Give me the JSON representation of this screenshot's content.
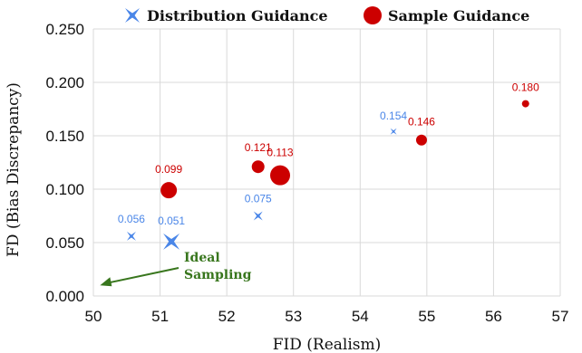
{
  "chart_data": {
    "type": "scatter",
    "xlabel": "FID (Realism)",
    "ylabel": "FD (Bias Discrepancy)",
    "xlim": [
      50,
      57
    ],
    "ylim": [
      0,
      0.25
    ],
    "xticks": [
      "50",
      "51",
      "52",
      "53",
      "54",
      "55",
      "56",
      "57"
    ],
    "yticks": [
      "0.000",
      "0.050",
      "0.100",
      "0.150",
      "0.200",
      "0.250"
    ],
    "grid": true,
    "legend_position": "top",
    "series": [
      {
        "name": "Distribution Guidance",
        "marker": "star",
        "color": "#4a86e8",
        "points": [
          {
            "x": 50.57,
            "y": 0.056,
            "label": "0.056",
            "size": 1
          },
          {
            "x": 51.17,
            "y": 0.051,
            "label": "0.051",
            "size": 1.8
          },
          {
            "x": 52.47,
            "y": 0.075,
            "label": "0.075",
            "size": 1
          },
          {
            "x": 54.5,
            "y": 0.154,
            "label": "0.154",
            "size": 0.7
          }
        ]
      },
      {
        "name": "Sample Guidance",
        "marker": "circle",
        "color": "#cc0000",
        "points": [
          {
            "x": 51.13,
            "y": 0.099,
            "label": "0.099",
            "size": 9
          },
          {
            "x": 52.47,
            "y": 0.121,
            "label": "0.121",
            "size": 7
          },
          {
            "x": 52.8,
            "y": 0.113,
            "label": "0.113",
            "size": 11
          },
          {
            "x": 54.92,
            "y": 0.146,
            "label": "0.146",
            "size": 6
          },
          {
            "x": 56.48,
            "y": 0.18,
            "label": "0.180",
            "size": 4
          }
        ]
      }
    ],
    "annotation": {
      "text_lines": [
        "Ideal",
        "Sampling"
      ],
      "color": "#38761d",
      "arrow_to": {
        "x": 50.1,
        "y": 0.01
      }
    }
  }
}
